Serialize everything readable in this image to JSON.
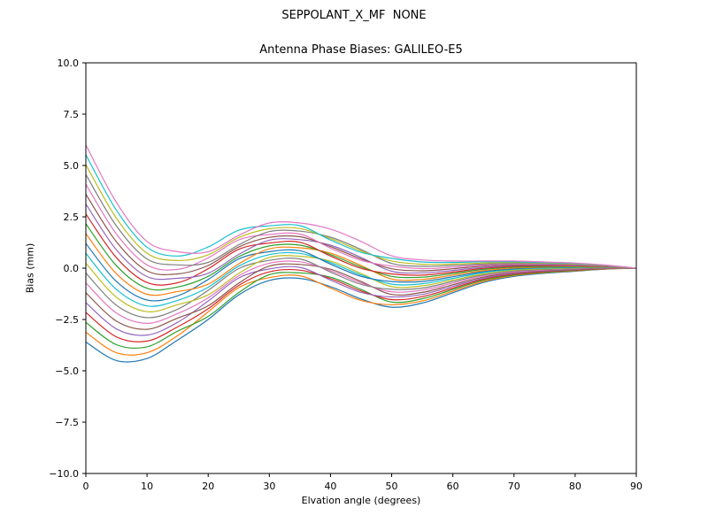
{
  "chart_data": {
    "type": "line",
    "title": "SEPPOLANT_X_MF  NONE",
    "subtitle": "Antenna Phase Biases: GALILEO-E5",
    "xlabel": "Elvation angle (degrees)",
    "ylabel": "Bias (mm)",
    "xlim": [
      0,
      90
    ],
    "ylim": [
      -10,
      10
    ],
    "grid": false,
    "legend": "none",
    "background": "#ffffff",
    "axis_color": "#000000",
    "x_ticks": [
      0,
      10,
      20,
      30,
      40,
      50,
      60,
      70,
      80,
      90
    ],
    "x_tick_labels": [
      "0",
      "10",
      "20",
      "30",
      "40",
      "50",
      "60",
      "70",
      "80",
      "90"
    ],
    "y_ticks": [
      10,
      7.5,
      5,
      2.5,
      0,
      -2.5,
      -5,
      -7.5,
      -10
    ],
    "y_tick_labels": [
      "10.0",
      "7.5",
      "5.0",
      "2.5",
      "0.0",
      "−2.5",
      "−5.0",
      "−7.5",
      "−10.0"
    ],
    "palette": [
      "#1f77b4",
      "#ff7f0e",
      "#2ca02c",
      "#d62728",
      "#9467bd",
      "#8c564b",
      "#e377c2",
      "#7f7f7f",
      "#bcbd22",
      "#17becf"
    ],
    "x": [
      0,
      5,
      10,
      15,
      20,
      25,
      30,
      35,
      40,
      45,
      50,
      55,
      60,
      65,
      70,
      75,
      80,
      85,
      90
    ],
    "series": [
      {
        "color": "#1f77b4",
        "values": [
          -3.6,
          -4.5,
          -4.4,
          -3.5,
          -2.5,
          -1.3,
          -0.6,
          -0.5,
          -0.9,
          -1.5,
          -1.9,
          -1.7,
          -1.2,
          -0.7,
          -0.4,
          -0.25,
          -0.15,
          -0.05,
          0
        ]
      },
      {
        "color": "#ff7f0e",
        "values": [
          -3.12,
          -4.12,
          -4.12,
          -3.29,
          -2.13,
          -0.95,
          -0.46,
          -0.37,
          -0.97,
          -1.57,
          -1.78,
          -1.6,
          -1.12,
          -0.65,
          -0.36,
          -0.22,
          -0.13,
          -0.04,
          0
        ]
      },
      {
        "color": "#2ca02c",
        "values": [
          -2.64,
          -3.73,
          -3.83,
          -3.07,
          -2.35,
          -1.19,
          -0.32,
          -0.23,
          -0.44,
          -1.04,
          -1.65,
          -1.49,
          -1.04,
          -0.59,
          -0.33,
          -0.2,
          -0.11,
          -0.03,
          0
        ]
      },
      {
        "color": "#d62728",
        "values": [
          -2.16,
          -3.35,
          -3.55,
          -2.86,
          -1.98,
          -0.84,
          -0.18,
          -0.1,
          -0.51,
          -1.11,
          -1.53,
          -1.39,
          -0.97,
          -0.54,
          -0.29,
          -0.17,
          -0.09,
          -0.02,
          0
        ]
      },
      {
        "color": "#9467bd",
        "values": [
          -1.68,
          -2.96,
          -3.26,
          -2.64,
          -1.6,
          -0.48,
          -0.04,
          0.04,
          -0.58,
          -1.18,
          -1.4,
          -1.28,
          -0.89,
          -0.49,
          -0.25,
          -0.14,
          -0.07,
          -0.01,
          0
        ]
      },
      {
        "color": "#8c564b",
        "values": [
          -1.2,
          -2.58,
          -2.98,
          -2.43,
          -1.83,
          -0.73,
          0.1,
          0.18,
          -0.05,
          -0.65,
          -1.28,
          -1.18,
          -0.81,
          -0.44,
          -0.21,
          -0.11,
          -0.05,
          0,
          0
        ]
      },
      {
        "color": "#e377c2",
        "values": [
          -0.72,
          -2.19,
          -2.69,
          -2.21,
          -1.45,
          -0.37,
          0.24,
          0.31,
          -0.12,
          -0.72,
          -1.15,
          -1.07,
          -0.73,
          -0.38,
          -0.18,
          -0.09,
          -0.03,
          0.01,
          0
        ]
      },
      {
        "color": "#7f7f7f",
        "values": [
          -0.24,
          -1.81,
          -2.41,
          -2.0,
          -1.08,
          -0.02,
          0.38,
          0.45,
          -0.19,
          -0.79,
          -1.03,
          -0.97,
          -0.65,
          -0.33,
          -0.14,
          -0.06,
          -0.01,
          0.02,
          0
        ]
      },
      {
        "color": "#bcbd22",
        "values": [
          0.24,
          -1.42,
          -2.12,
          -1.78,
          -1.3,
          -0.26,
          0.52,
          0.58,
          0.34,
          -0.26,
          -0.9,
          -0.86,
          -0.58,
          -0.28,
          -0.1,
          -0.03,
          0.01,
          0.03,
          0
        ]
      },
      {
        "color": "#17becf",
        "values": [
          0.72,
          -1.04,
          -1.84,
          -1.57,
          -0.93,
          0.1,
          0.66,
          0.72,
          0.27,
          -0.33,
          -0.78,
          -0.76,
          -0.5,
          -0.22,
          -0.06,
          0,
          0.03,
          0.04,
          0
        ]
      },
      {
        "color": "#1f77b4",
        "values": [
          1.2,
          -0.65,
          -1.55,
          -1.35,
          -0.55,
          0.45,
          0.8,
          0.85,
          0.2,
          -0.4,
          -0.65,
          -0.65,
          -0.42,
          -0.17,
          -0.03,
          0.03,
          0.05,
          0.05,
          0
        ]
      },
      {
        "color": "#ff7f0e",
        "values": [
          1.68,
          -0.27,
          -1.27,
          -1.14,
          -0.78,
          0.21,
          0.94,
          0.99,
          0.73,
          0.13,
          -0.53,
          -0.55,
          -0.34,
          -0.12,
          0.01,
          0.05,
          0.07,
          0.06,
          0
        ]
      },
      {
        "color": "#2ca02c",
        "values": [
          2.16,
          0.12,
          -0.98,
          -0.92,
          -0.4,
          0.56,
          1.08,
          1.12,
          0.66,
          0.06,
          -0.4,
          -0.44,
          -0.26,
          -0.06,
          0.05,
          0.08,
          0.09,
          0.07,
          0
        ]
      },
      {
        "color": "#d62728",
        "values": [
          2.64,
          0.51,
          -0.7,
          -0.71,
          -0.03,
          0.92,
          1.22,
          1.26,
          0.59,
          -0.01,
          -0.28,
          -0.34,
          -0.19,
          -0.01,
          0.09,
          0.11,
          0.11,
          0.08,
          0
        ]
      },
      {
        "color": "#9467bd",
        "values": [
          3.12,
          0.89,
          -0.41,
          -0.49,
          -0.25,
          0.67,
          1.36,
          1.39,
          1.12,
          0.52,
          -0.15,
          -0.23,
          -0.11,
          0.04,
          0.13,
          0.14,
          0.13,
          0.09,
          0
        ]
      },
      {
        "color": "#8c564b",
        "values": [
          3.6,
          1.28,
          -0.13,
          -0.28,
          0.13,
          1.03,
          1.5,
          1.53,
          1.05,
          0.45,
          -0.03,
          -0.13,
          -0.03,
          0.1,
          0.16,
          0.16,
          0.15,
          0.1,
          0
        ]
      },
      {
        "color": "#e377c2",
        "values": [
          4.08,
          1.66,
          0.16,
          -0.06,
          0.5,
          1.38,
          1.64,
          1.66,
          0.98,
          0.38,
          0.1,
          -0.02,
          0.05,
          0.15,
          0.2,
          0.19,
          0.17,
          0.11,
          0
        ]
      },
      {
        "color": "#7f7f7f",
        "values": [
          4.56,
          2.05,
          0.45,
          0.16,
          0.28,
          1.14,
          1.78,
          1.8,
          1.51,
          0.91,
          0.23,
          0.09,
          0.13,
          0.2,
          0.24,
          0.22,
          0.19,
          0.12,
          0
        ]
      },
      {
        "color": "#bcbd22",
        "values": [
          5.04,
          2.43,
          0.73,
          0.37,
          0.65,
          1.49,
          1.92,
          1.93,
          1.44,
          0.84,
          0.35,
          0.19,
          0.2,
          0.25,
          0.28,
          0.25,
          0.21,
          0.13,
          0
        ]
      },
      {
        "color": "#17becf",
        "values": [
          5.52,
          2.82,
          1.02,
          0.59,
          1.03,
          1.85,
          2.06,
          2.07,
          1.37,
          0.77,
          0.48,
          0.3,
          0.28,
          0.31,
          0.31,
          0.27,
          0.23,
          0.14,
          0
        ]
      },
      {
        "color": "#e377c2",
        "values": [
          6.0,
          3.2,
          1.3,
          0.8,
          0.8,
          1.6,
          2.2,
          2.2,
          1.9,
          1.3,
          0.6,
          0.4,
          0.35,
          0.35,
          0.35,
          0.3,
          0.25,
          0.15,
          0
        ]
      }
    ]
  }
}
